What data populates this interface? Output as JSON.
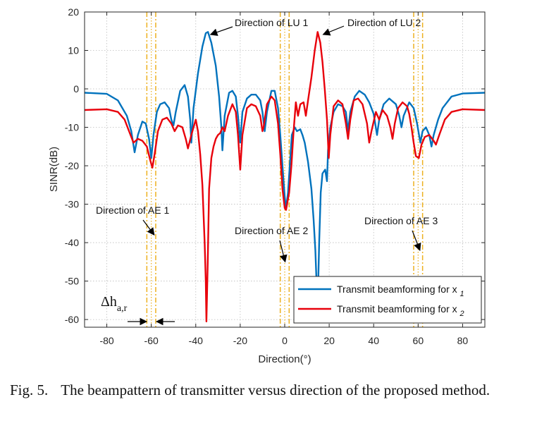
{
  "chart_data": {
    "type": "line",
    "xlabel": "Direction(°)",
    "ylabel": "SINR(dB)",
    "xlim": [
      -90,
      90
    ],
    "ylim": [
      -62,
      20
    ],
    "xticks": [
      -80,
      -60,
      -40,
      -20,
      0,
      20,
      40,
      60,
      80
    ],
    "yticks": [
      20,
      10,
      0,
      -10,
      -20,
      -30,
      -40,
      -50,
      -60
    ],
    "grid": true,
    "legend_position": "bottom-right",
    "series": [
      {
        "name": "Transmit beamforming for x",
        "subscript": "1",
        "color": "#0072BD",
        "points": [
          [
            -90,
            -1
          ],
          [
            -80,
            -1.3
          ],
          [
            -75,
            -3
          ],
          [
            -71,
            -7
          ],
          [
            -69,
            -11
          ],
          [
            -67.5,
            -16.5
          ],
          [
            -66,
            -12
          ],
          [
            -64,
            -8.5
          ],
          [
            -62.5,
            -9
          ],
          [
            -61,
            -13
          ],
          [
            -60,
            -18
          ],
          [
            -59,
            -12
          ],
          [
            -57.5,
            -6
          ],
          [
            -56,
            -4
          ],
          [
            -54,
            -3.5
          ],
          [
            -52,
            -5
          ],
          [
            -51,
            -8
          ],
          [
            -50,
            -9.5
          ],
          [
            -49,
            -6
          ],
          [
            -47,
            -0.5
          ],
          [
            -45,
            1
          ],
          [
            -43.5,
            -2
          ],
          [
            -42.5,
            -8
          ],
          [
            -42,
            -14
          ],
          [
            -41,
            -5
          ],
          [
            -39,
            4
          ],
          [
            -37,
            11
          ],
          [
            -35.5,
            14.5
          ],
          [
            -34.5,
            14.8
          ],
          [
            -33,
            12
          ],
          [
            -31,
            6
          ],
          [
            -29.5,
            -2
          ],
          [
            -28.5,
            -10
          ],
          [
            -28,
            -16
          ],
          [
            -27,
            -7
          ],
          [
            -25,
            -1
          ],
          [
            -23.5,
            -0.5
          ],
          [
            -22,
            -2
          ],
          [
            -21,
            -7
          ],
          [
            -20,
            -14
          ],
          [
            -19,
            -6
          ],
          [
            -17,
            -2.5
          ],
          [
            -15,
            -1.5
          ],
          [
            -13,
            -1.5
          ],
          [
            -11,
            -3
          ],
          [
            -10,
            -6
          ],
          [
            -9,
            -11
          ],
          [
            -8,
            -6
          ],
          [
            -6,
            -0.5
          ],
          [
            -4.5,
            -0.5
          ],
          [
            -3,
            -5
          ],
          [
            -2,
            -12
          ],
          [
            -1,
            -20
          ],
          [
            0,
            -28
          ],
          [
            0.6,
            -31
          ],
          [
            1.5,
            -27
          ],
          [
            2.5,
            -18
          ],
          [
            3.2,
            -12
          ],
          [
            4.5,
            -10
          ],
          [
            5.5,
            -11
          ],
          [
            7,
            -10.5
          ],
          [
            8,
            -12
          ],
          [
            9,
            -14
          ],
          [
            10.5,
            -19
          ],
          [
            12,
            -26
          ],
          [
            13,
            -34
          ],
          [
            13.8,
            -42
          ],
          [
            14.3,
            -50
          ],
          [
            14.8,
            -57
          ],
          [
            15.5,
            -40
          ],
          [
            16.2,
            -27
          ],
          [
            17,
            -22
          ],
          [
            18.2,
            -21
          ],
          [
            19,
            -24
          ],
          [
            19.5,
            -16
          ],
          [
            20.5,
            -10
          ],
          [
            22,
            -6
          ],
          [
            24,
            -4
          ],
          [
            26,
            -4.5
          ],
          [
            27.5,
            -6
          ],
          [
            28.5,
            -11
          ],
          [
            29.5,
            -6
          ],
          [
            31.5,
            -2
          ],
          [
            33.5,
            -0.5
          ],
          [
            36,
            -1.5
          ],
          [
            38,
            -3.5
          ],
          [
            40,
            -6.5
          ],
          [
            41.5,
            -12
          ],
          [
            42.5,
            -8
          ],
          [
            44.5,
            -4
          ],
          [
            47,
            -2.5
          ],
          [
            50,
            -4
          ],
          [
            51.5,
            -7
          ],
          [
            52.5,
            -10
          ],
          [
            53.5,
            -7
          ],
          [
            56,
            -3.5
          ],
          [
            58,
            -5
          ],
          [
            59.5,
            -9
          ],
          [
            61,
            -14
          ],
          [
            62,
            -11
          ],
          [
            63.5,
            -10
          ],
          [
            65,
            -12
          ],
          [
            66,
            -15
          ],
          [
            67,
            -12
          ],
          [
            69,
            -8
          ],
          [
            71,
            -5
          ],
          [
            75,
            -2
          ],
          [
            80,
            -1.2
          ],
          [
            90,
            -1
          ]
        ]
      },
      {
        "name": "Transmit beamforming for x",
        "subscript": "2",
        "color": "#E8000B",
        "points": [
          [
            -90,
            -5.5
          ],
          [
            -80,
            -5.3
          ],
          [
            -75,
            -6
          ],
          [
            -72,
            -8
          ],
          [
            -70,
            -11
          ],
          [
            -68,
            -14
          ],
          [
            -66,
            -13
          ],
          [
            -64,
            -13.5
          ],
          [
            -62,
            -15
          ],
          [
            -60.5,
            -18.5
          ],
          [
            -59.5,
            -20.5
          ],
          [
            -58.5,
            -17
          ],
          [
            -57,
            -11
          ],
          [
            -55,
            -8
          ],
          [
            -53,
            -7.5
          ],
          [
            -51,
            -9
          ],
          [
            -49.5,
            -11
          ],
          [
            -48,
            -9.5
          ],
          [
            -46,
            -10
          ],
          [
            -44.5,
            -13
          ],
          [
            -43.5,
            -15.5
          ],
          [
            -42,
            -12
          ],
          [
            -40,
            -8
          ],
          [
            -39,
            -11
          ],
          [
            -38,
            -17
          ],
          [
            -37,
            -25
          ],
          [
            -36,
            -40
          ],
          [
            -35.5,
            -50
          ],
          [
            -35.2,
            -60.5
          ],
          [
            -34.6,
            -45
          ],
          [
            -34,
            -26
          ],
          [
            -33,
            -18
          ],
          [
            -32,
            -15
          ],
          [
            -31,
            -13
          ],
          [
            -30,
            -12
          ],
          [
            -29,
            -11.5
          ],
          [
            -28,
            -10
          ],
          [
            -27,
            -11
          ],
          [
            -25.5,
            -7
          ],
          [
            -23.5,
            -4
          ],
          [
            -22,
            -6
          ],
          [
            -21,
            -12
          ],
          [
            -20,
            -21
          ],
          [
            -19,
            -12
          ],
          [
            -17,
            -5
          ],
          [
            -15,
            -4
          ],
          [
            -13,
            -4.5
          ],
          [
            -11,
            -7
          ],
          [
            -10,
            -11
          ],
          [
            -9.5,
            -10
          ],
          [
            -8,
            -4
          ],
          [
            -6,
            -2
          ],
          [
            -4.5,
            -3
          ],
          [
            -3,
            -9
          ],
          [
            -2,
            -17
          ],
          [
            -1,
            -26
          ],
          [
            0,
            -31
          ],
          [
            0.6,
            -31.5
          ],
          [
            2,
            -27
          ],
          [
            3,
            -20
          ],
          [
            4,
            -11
          ],
          [
            5,
            -3.5
          ],
          [
            6,
            -7
          ],
          [
            7,
            -4
          ],
          [
            8.5,
            -3.5
          ],
          [
            9.5,
            -7
          ],
          [
            10.5,
            -3
          ],
          [
            12,
            3
          ],
          [
            13.5,
            10
          ],
          [
            14.8,
            14.8
          ],
          [
            16,
            12
          ],
          [
            17,
            7
          ],
          [
            18,
            0
          ],
          [
            19,
            -8
          ],
          [
            19.8,
            -18
          ],
          [
            20.5,
            -12
          ],
          [
            22,
            -4.5
          ],
          [
            24,
            -3
          ],
          [
            26,
            -4
          ],
          [
            27.5,
            -9
          ],
          [
            28.5,
            -13
          ],
          [
            29.5,
            -8
          ],
          [
            31,
            -3
          ],
          [
            33,
            -2.5
          ],
          [
            35,
            -4
          ],
          [
            37,
            -9
          ],
          [
            38,
            -14
          ],
          [
            39,
            -11
          ],
          [
            41,
            -6
          ],
          [
            42.5,
            -8
          ],
          [
            44,
            -5.5
          ],
          [
            46,
            -7
          ],
          [
            47.5,
            -10
          ],
          [
            48.5,
            -13
          ],
          [
            49.5,
            -9
          ],
          [
            51,
            -5
          ],
          [
            53,
            -3.5
          ],
          [
            55,
            -4.5
          ],
          [
            56,
            -6.5
          ],
          [
            57,
            -10
          ],
          [
            58,
            -14
          ],
          [
            59,
            -17.5
          ],
          [
            60.3,
            -18
          ],
          [
            61.5,
            -14.5
          ],
          [
            63,
            -12.5
          ],
          [
            65,
            -12
          ],
          [
            67,
            -13.5
          ],
          [
            68,
            -14.5
          ],
          [
            69.5,
            -12
          ],
          [
            72,
            -8
          ],
          [
            75,
            -6
          ],
          [
            80,
            -5.3
          ],
          [
            90,
            -5.5
          ]
        ]
      }
    ],
    "vertical_lines": {
      "color": "#EDB120",
      "dash_dot_x": [
        -62,
        -58,
        -2,
        2,
        58,
        62
      ],
      "dotted_x": [
        -60,
        0,
        60
      ]
    },
    "annotations": [
      {
        "text": "Direction of LU 1",
        "target": [
          -35,
          15
        ]
      },
      {
        "text": "Direction of LU 2",
        "target": [
          15,
          15
        ]
      },
      {
        "text": "Direction of AE 1",
        "target": [
          -60,
          -38
        ]
      },
      {
        "text": "Direction of AE 2",
        "target": [
          0,
          -45
        ]
      },
      {
        "text": "Direction of AE 3",
        "target": [
          60,
          -42
        ]
      }
    ],
    "delta_label": {
      "main": "Δh",
      "sub": "a,r"
    }
  },
  "caption": {
    "label": "Fig. 5.",
    "text": "The beampattern of transmitter versus direction of the proposed method."
  }
}
